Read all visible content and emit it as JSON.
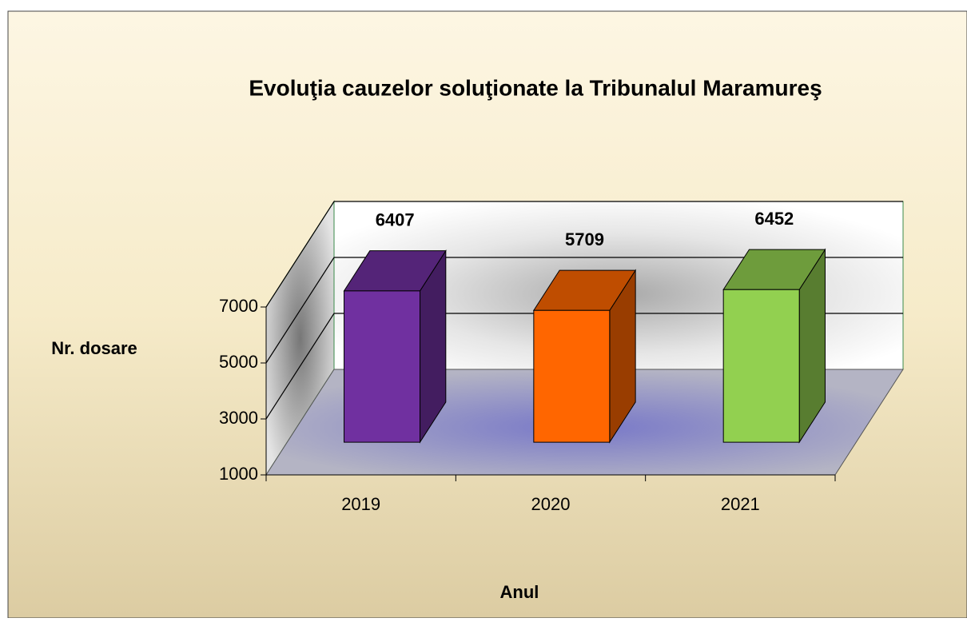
{
  "chart_data": {
    "type": "bar3d",
    "title": "Evoluţia cauzelor soluţionate  la Tribunalul Maramureş",
    "y_label": "Nr. dosare",
    "x_label": "Anul",
    "categories": [
      "2019",
      "2020",
      "2021"
    ],
    "values": [
      6407,
      5709,
      6452
    ],
    "colors": [
      "#7030a0",
      "#ff6600",
      "#92d050"
    ],
    "ylim": [
      1000,
      7000
    ],
    "yticks": [
      1000,
      3000,
      5000,
      7000
    ],
    "grid": true
  }
}
